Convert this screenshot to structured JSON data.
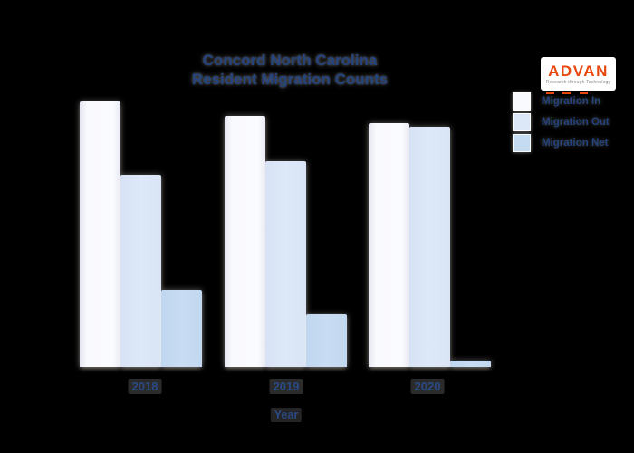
{
  "page": {
    "background": "#000000"
  },
  "title": {
    "line1": "Concord North Carolina",
    "line2": "Resident Migration Counts"
  },
  "logo": {
    "name": "ADVAN",
    "tagline": "Research through Technology",
    "brand_color": "#e8470e"
  },
  "legend": {
    "position": "upper right",
    "items": [
      {
        "label": "Migration In",
        "color": "#f9fafe"
      },
      {
        "label": "Migration Out",
        "color": "#dce7f7"
      },
      {
        "label": "Migration Net",
        "color": "#c5dbf1"
      }
    ]
  },
  "x_axis": {
    "title": "Year"
  },
  "chart_data": {
    "type": "bar",
    "title": "Concord North Carolina Resident Migration Counts",
    "xlabel": "Year",
    "ylabel": "",
    "categories": [
      "2018",
      "2019",
      "2020"
    ],
    "series": [
      {
        "name": "Migration In",
        "values": [
          293,
          277,
          269
        ]
      },
      {
        "name": "Migration Out",
        "values": [
          212,
          227,
          265
        ]
      },
      {
        "name": "Migration Net",
        "values": [
          85,
          58,
          7
        ]
      }
    ],
    "value_note": "No y-axis, tick values or gridlines are visible; values are relative bar heights (pixels) with Net = In - Out",
    "ylim": [
      0,
      305
    ],
    "grid": false,
    "y_axis_visible": false,
    "legend_position": "upper right",
    "colors": [
      "#f9fafe",
      "#dce7f7",
      "#c5dbf1"
    ]
  }
}
